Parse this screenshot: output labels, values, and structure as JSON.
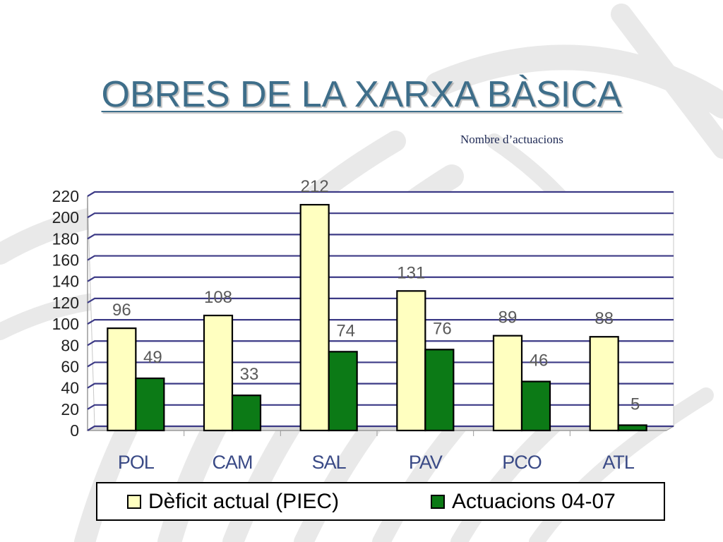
{
  "slide": {
    "title": "OBRES DE LA XARXA BÀSICA",
    "subtitle": "Nombre d’actuacions"
  },
  "colors": {
    "background": "#ffffff",
    "title": "#3e6e8a",
    "grid": "#3c3a86",
    "deficit": "#ffffc0",
    "actuacions": "#0c7a16",
    "label": "#5a5a5a"
  },
  "chart_data": {
    "type": "bar",
    "categories": [
      "POL",
      "CAM",
      "SAL",
      "PAV",
      "PCO",
      "ATL"
    ],
    "series": [
      {
        "name": "Dèficit actual (PIEC)",
        "values": [
          96,
          108,
          212,
          131,
          89,
          88
        ],
        "color": "#ffffc0"
      },
      {
        "name": "Actuacions 04-07",
        "values": [
          49,
          33,
          74,
          76,
          46,
          5
        ],
        "color": "#0c7a16"
      }
    ],
    "yticks": [
      0,
      20,
      40,
      60,
      80,
      100,
      120,
      140,
      160,
      180,
      200,
      220
    ],
    "ylim": [
      0,
      220
    ],
    "grid": true,
    "legend_position": "bottom",
    "data_labels": true
  }
}
